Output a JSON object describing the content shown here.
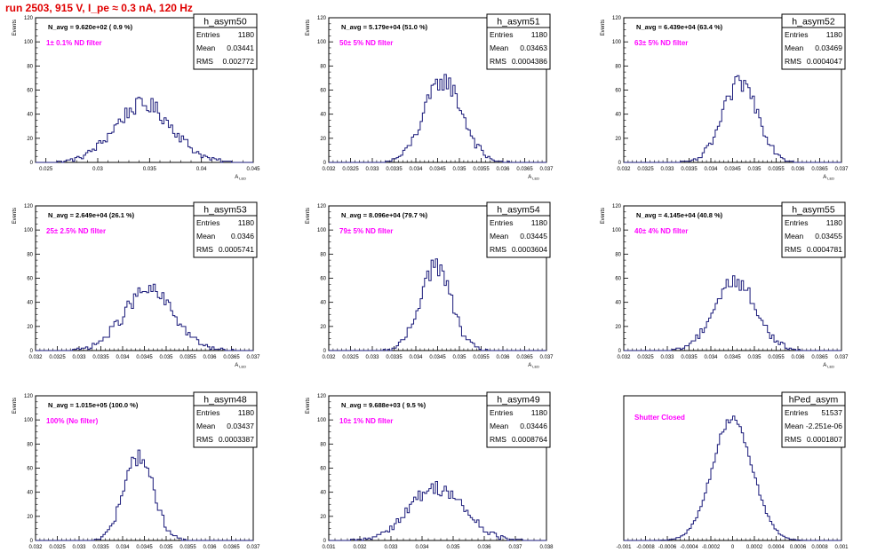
{
  "page_title": "run 2503,   915 V, I_pe ≈ 0.3 nA, 120 Hz",
  "stat_labels": {
    "entries": "Entries",
    "mean": "Mean",
    "rms": "RMS"
  },
  "colors": {
    "title": "#e00000",
    "histogram": "#1a1a7a",
    "annotation": "#ff00ff",
    "axis": "#000000"
  },
  "chart_data": [
    {
      "type": "bar",
      "name": "h_asym50",
      "navg_text": "N_avg = 9.620e+02 ( 0.9 %)",
      "annotation": "1± 0.1% ND filter",
      "stats": {
        "entries": "1180",
        "mean": "0.03441",
        "rms": "0.002772"
      },
      "ylabel": "Events",
      "xlabel": "A",
      "xlabel_sub": "LED",
      "xlim": [
        0.024,
        0.045
      ],
      "ylim": [
        0,
        120
      ],
      "xticks": [
        0.025,
        0.03,
        0.035,
        0.04,
        0.045
      ],
      "xticklabels": [
        "0.025",
        "0.03",
        "0.035",
        "0.04",
        "0.045"
      ],
      "yticks": [
        0,
        20,
        40,
        60,
        80,
        100,
        120
      ],
      "curve": {
        "mean": 0.03441,
        "rms": 0.002772,
        "peak": 48
      }
    },
    {
      "type": "bar",
      "name": "h_asym51",
      "navg_text": "N_avg = 5.179e+04 (51.0 %)",
      "annotation": "50± 5% ND filter",
      "stats": {
        "entries": "1180",
        "mean": "0.03463",
        "rms": "0.0004386"
      },
      "ylabel": "Events",
      "xlabel": "A",
      "xlabel_sub": "LED",
      "xlim": [
        0.032,
        0.037
      ],
      "ylim": [
        0,
        120
      ],
      "xticks": [
        0.032,
        0.0325,
        0.033,
        0.0335,
        0.034,
        0.0345,
        0.035,
        0.0355,
        0.036,
        0.0365,
        0.037
      ],
      "xticklabels": [
        "0.032",
        "0.0325",
        "0.033",
        "0.0335",
        "0.034",
        "0.0345",
        "0.035",
        "0.0355",
        "0.036",
        "0.0365",
        "0.037"
      ],
      "yticks": [
        0,
        20,
        40,
        60,
        80,
        100,
        120
      ],
      "curve": {
        "mean": 0.03463,
        "rms": 0.0004386,
        "peak": 68
      }
    },
    {
      "type": "bar",
      "name": "h_asym52",
      "navg_text": "N_avg = 6.439e+04 (63.4 %)",
      "annotation": "63± 5% ND filter",
      "stats": {
        "entries": "1180",
        "mean": "0.03469",
        "rms": "0.0004047"
      },
      "ylabel": "Events",
      "xlabel": "A",
      "xlabel_sub": "LED",
      "xlim": [
        0.032,
        0.037
      ],
      "ylim": [
        0,
        120
      ],
      "xticks": [
        0.032,
        0.0325,
        0.033,
        0.0335,
        0.034,
        0.0345,
        0.035,
        0.0355,
        0.036,
        0.0365,
        0.037
      ],
      "xticklabels": [
        "0.032",
        "0.0325",
        "0.033",
        "0.0335",
        "0.034",
        "0.0345",
        "0.035",
        "0.0355",
        "0.036",
        "0.0365",
        "0.037"
      ],
      "yticks": [
        0,
        20,
        40,
        60,
        80,
        100,
        120
      ],
      "curve": {
        "mean": 0.03469,
        "rms": 0.0004047,
        "peak": 66
      }
    },
    {
      "type": "bar",
      "name": "h_asym53",
      "navg_text": "N_avg = 2.649e+04 (26.1 %)",
      "annotation": "25± 2.5% ND filter",
      "stats": {
        "entries": "1180",
        "mean": "0.0346",
        "rms": "0.0005741"
      },
      "ylabel": "Events",
      "xlabel": "A",
      "xlabel_sub": "LED",
      "xlim": [
        0.032,
        0.037
      ],
      "ylim": [
        0,
        120
      ],
      "xticks": [
        0.032,
        0.0325,
        0.033,
        0.0335,
        0.034,
        0.0345,
        0.035,
        0.0355,
        0.036,
        0.0365,
        0.037
      ],
      "xticklabels": [
        "0.032",
        "0.0325",
        "0.033",
        "0.0335",
        "0.034",
        "0.0345",
        "0.035",
        "0.0355",
        "0.036",
        "0.0365",
        "0.037"
      ],
      "yticks": [
        0,
        20,
        40,
        60,
        80,
        100,
        120
      ],
      "curve": {
        "mean": 0.0346,
        "rms": 0.0005741,
        "peak": 50
      }
    },
    {
      "type": "bar",
      "name": "h_asym54",
      "navg_text": "N_avg = 8.096e+04 (79.7 %)",
      "annotation": "79± 5% ND filter",
      "stats": {
        "entries": "1180",
        "mean": "0.03445",
        "rms": "0.0003604"
      },
      "ylabel": "Events",
      "xlabel": "A",
      "xlabel_sub": "LED",
      "xlim": [
        0.032,
        0.037
      ],
      "ylim": [
        0,
        120
      ],
      "xticks": [
        0.032,
        0.0325,
        0.033,
        0.0335,
        0.034,
        0.0345,
        0.035,
        0.0355,
        0.036,
        0.0365,
        0.037
      ],
      "xticklabels": [
        "0.032",
        "0.0325",
        "0.033",
        "0.0335",
        "0.034",
        "0.0345",
        "0.035",
        "0.0355",
        "0.036",
        "0.0365",
        "0.037"
      ],
      "yticks": [
        0,
        20,
        40,
        60,
        80,
        100,
        120
      ],
      "curve": {
        "mean": 0.03445,
        "rms": 0.0003604,
        "peak": 70
      }
    },
    {
      "type": "bar",
      "name": "h_asym55",
      "navg_text": "N_avg = 4.145e+04 (40.8 %)",
      "annotation": "40± 4% ND filter",
      "stats": {
        "entries": "1180",
        "mean": "0.03455",
        "rms": "0.0004781"
      },
      "ylabel": "Events",
      "xlabel": "A",
      "xlabel_sub": "LED",
      "xlim": [
        0.032,
        0.037
      ],
      "ylim": [
        0,
        120
      ],
      "xticks": [
        0.032,
        0.0325,
        0.033,
        0.0335,
        0.034,
        0.0345,
        0.035,
        0.0355,
        0.036,
        0.0365,
        0.037
      ],
      "xticklabels": [
        "0.032",
        "0.0325",
        "0.033",
        "0.0335",
        "0.034",
        "0.0345",
        "0.035",
        "0.0355",
        "0.036",
        "0.0365",
        "0.037"
      ],
      "yticks": [
        0,
        20,
        40,
        60,
        80,
        100,
        120
      ],
      "curve": {
        "mean": 0.03455,
        "rms": 0.0004781,
        "peak": 58
      }
    },
    {
      "type": "bar",
      "name": "h_asym48",
      "navg_text": "N_avg = 1.015e+05 (100.0 %)",
      "annotation": "100% (No filter)",
      "stats": {
        "entries": "1180",
        "mean": "0.03437",
        "rms": "0.0003387"
      },
      "ylabel": "Events",
      "xlabel": "A",
      "xlabel_sub": "LED",
      "xlim": [
        0.032,
        0.037
      ],
      "ylim": [
        0,
        120
      ],
      "xticks": [
        0.032,
        0.0325,
        0.033,
        0.0335,
        0.034,
        0.0345,
        0.035,
        0.0355,
        0.036,
        0.0365,
        0.037
      ],
      "xticklabels": [
        "0.032",
        "0.0325",
        "0.033",
        "0.0335",
        "0.034",
        "0.0345",
        "0.035",
        "0.0355",
        "0.036",
        "0.0365",
        "0.037"
      ],
      "yticks": [
        0,
        20,
        40,
        60,
        80,
        100,
        120
      ],
      "curve": {
        "mean": 0.03437,
        "rms": 0.0003387,
        "peak": 70
      }
    },
    {
      "type": "bar",
      "name": "h_asym49",
      "navg_text": "N_avg = 9.688e+03 ( 9.5 %)",
      "annotation": "10± 1% ND filter",
      "stats": {
        "entries": "1180",
        "mean": "0.03446",
        "rms": "0.0008764"
      },
      "ylabel": "Events",
      "xlabel": "A",
      "xlabel_sub": "LED",
      "xlim": [
        0.031,
        0.038
      ],
      "ylim": [
        0,
        120
      ],
      "xticks": [
        0.031,
        0.032,
        0.033,
        0.034,
        0.035,
        0.036,
        0.037,
        0.038
      ],
      "xticklabels": [
        "0.031",
        "0.032",
        "0.033",
        "0.034",
        "0.035",
        "0.036",
        "0.037",
        "0.038"
      ],
      "yticks": [
        0,
        20,
        40,
        60,
        80,
        100,
        120
      ],
      "curve": {
        "mean": 0.03446,
        "rms": 0.0008764,
        "peak": 44
      }
    },
    {
      "type": "bar",
      "name": "hPed_asym",
      "navg_text": "",
      "annotation": "Shutter Closed",
      "stats": {
        "entries": "51537",
        "mean": "-2.251e-06",
        "rms": "0.0001807"
      },
      "ylabel": "",
      "xlabel": "",
      "xlabel_sub": "",
      "xlim": [
        -0.001,
        0.001
      ],
      "ylim": [
        0,
        2800
      ],
      "xticks": [
        -0.001,
        -0.0008,
        -0.0006,
        -0.0004,
        -0.0002,
        0,
        0.0002,
        0.0004,
        0.0006,
        0.0008,
        0.001
      ],
      "xticklabels": [
        "-0.001",
        "-0.0008",
        "-0.0006",
        "-0.0004",
        "-0.0002",
        "0",
        "0.0002",
        "0.0004",
        "0.0006",
        "0.0008",
        "0.001"
      ],
      "yticks": [],
      "curve": {
        "mean": -2.3e-06,
        "rms": 0.0001807,
        "peak": 2380
      }
    }
  ]
}
